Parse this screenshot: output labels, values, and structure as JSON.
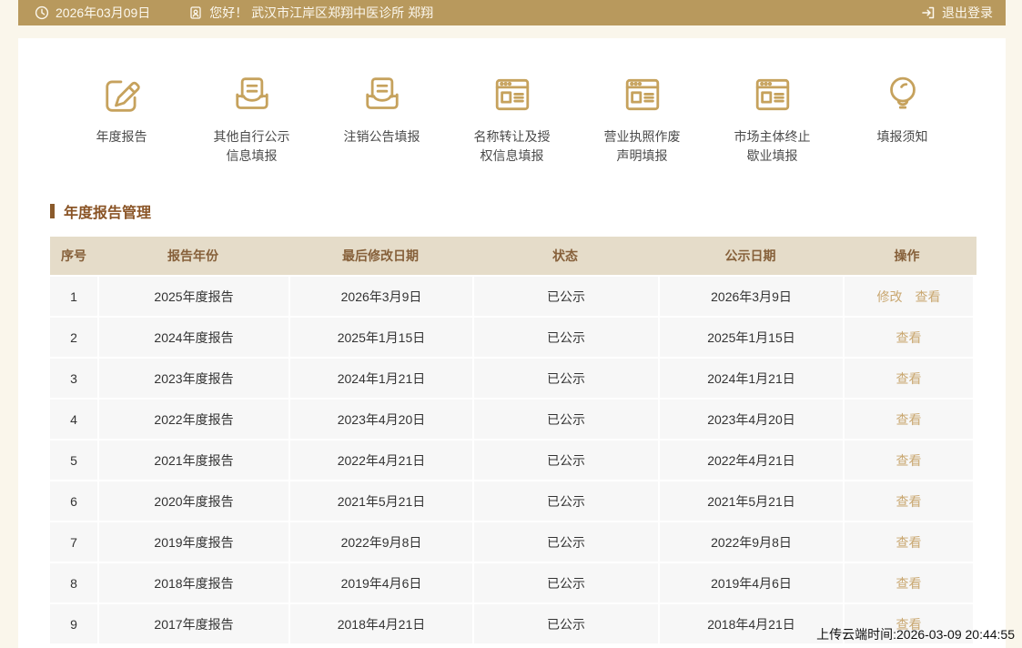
{
  "topbar": {
    "date": "2026年03月09日",
    "greeting": "您好！ 武汉市江岸区郑翔中医诊所 郑翔",
    "logout_label": "退出登录"
  },
  "nav": {
    "items": [
      {
        "label": "年度报告",
        "icon": "edit-icon"
      },
      {
        "label": "其他自行公示信息填报",
        "icon": "inbox-tray-icon"
      },
      {
        "label": "注销公告填报",
        "icon": "inbox-tray-icon"
      },
      {
        "label": "名称转让及授权信息填报",
        "icon": "form-window-icon"
      },
      {
        "label": "营业执照作废声明填报",
        "icon": "form-window-icon"
      },
      {
        "label": "市场主体终止歇业填报",
        "icon": "form-window-icon"
      },
      {
        "label": "填报须知",
        "icon": "lightbulb-icon"
      }
    ]
  },
  "section": {
    "title": "年度报告管理"
  },
  "table": {
    "headers": [
      "序号",
      "报告年份",
      "最后修改日期",
      "状态",
      "公示日期",
      "操作"
    ],
    "rows": [
      {
        "no": "1",
        "year": "2025年度报告",
        "modified": "2026年3月9日",
        "status": "已公示",
        "publish": "2026年3月9日",
        "actions": [
          {
            "label": "修改",
            "name": "modify-link"
          },
          {
            "label": "查看",
            "name": "view-link"
          }
        ]
      },
      {
        "no": "2",
        "year": "2024年度报告",
        "modified": "2025年1月15日",
        "status": "已公示",
        "publish": "2025年1月15日",
        "actions": [
          {
            "label": "查看",
            "name": "view-link"
          }
        ]
      },
      {
        "no": "3",
        "year": "2023年度报告",
        "modified": "2024年1月21日",
        "status": "已公示",
        "publish": "2024年1月21日",
        "actions": [
          {
            "label": "查看",
            "name": "view-link"
          }
        ]
      },
      {
        "no": "4",
        "year": "2022年度报告",
        "modified": "2023年4月20日",
        "status": "已公示",
        "publish": "2023年4月20日",
        "actions": [
          {
            "label": "查看",
            "name": "view-link"
          }
        ]
      },
      {
        "no": "5",
        "year": "2021年度报告",
        "modified": "2022年4月21日",
        "status": "已公示",
        "publish": "2022年4月21日",
        "actions": [
          {
            "label": "查看",
            "name": "view-link"
          }
        ]
      },
      {
        "no": "6",
        "year": "2020年度报告",
        "modified": "2021年5月21日",
        "status": "已公示",
        "publish": "2021年5月21日",
        "actions": [
          {
            "label": "查看",
            "name": "view-link"
          }
        ]
      },
      {
        "no": "7",
        "year": "2019年度报告",
        "modified": "2022年9月8日",
        "status": "已公示",
        "publish": "2022年9月8日",
        "actions": [
          {
            "label": "查看",
            "name": "view-link"
          }
        ]
      },
      {
        "no": "8",
        "year": "2018年度报告",
        "modified": "2019年4月6日",
        "status": "已公示",
        "publish": "2019年4月6日",
        "actions": [
          {
            "label": "查看",
            "name": "view-link"
          }
        ]
      },
      {
        "no": "9",
        "year": "2017年度报告",
        "modified": "2018年4月21日",
        "status": "已公示",
        "publish": "2018年4月21日",
        "actions": [
          {
            "label": "查看",
            "name": "view-link"
          }
        ]
      }
    ]
  },
  "footer": {
    "upload_time": "上传云端时间:2026-03-09 20:44:55"
  },
  "colors": {
    "topbar_bg": "#b8995d",
    "icon_gold": "#c6a25d",
    "title_brown": "#8a5426",
    "table_header_bg": "#e5dcc9",
    "link_gold": "#c9a770",
    "row_bg": "#f7f7f7",
    "page_bg": "#faf6eb"
  }
}
